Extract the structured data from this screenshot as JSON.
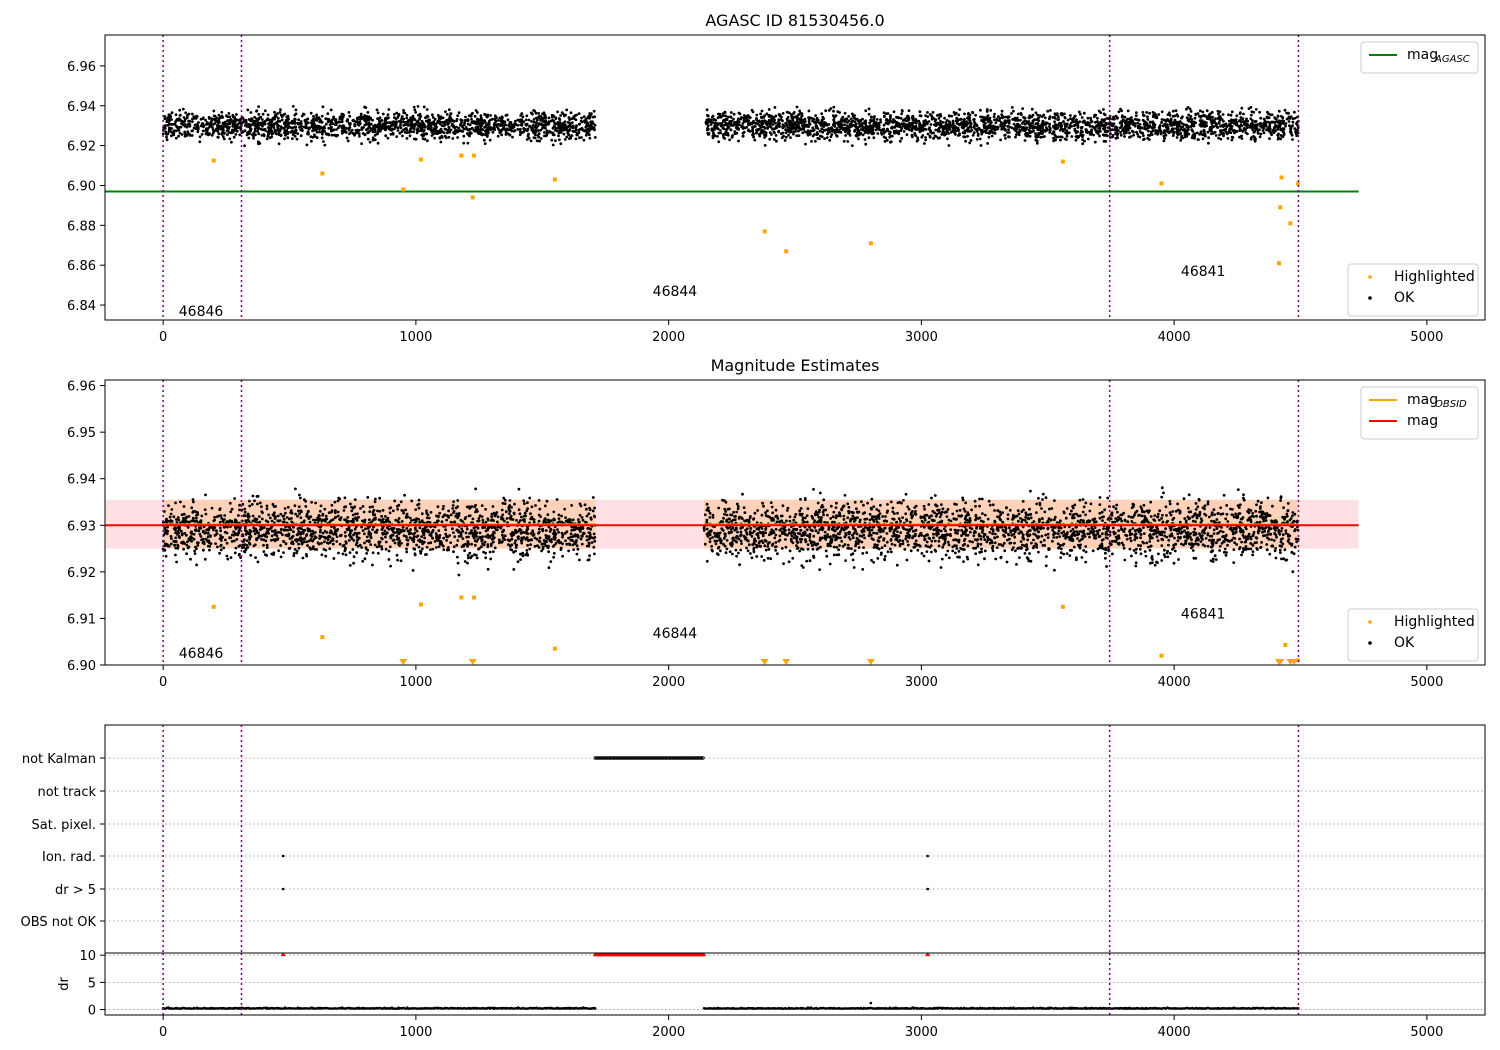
{
  "chart_data": [
    {
      "type": "scatter",
      "title": "AGASC ID 81530456.0",
      "xlim": [
        -230,
        5230
      ],
      "ylim": [
        6.8325,
        6.9755
      ],
      "xticks": [
        0,
        1000,
        2000,
        3000,
        4000,
        5000
      ],
      "yticks": [
        6.84,
        6.86,
        6.88,
        6.9,
        6.92,
        6.94,
        6.96
      ],
      "ytick_labels": [
        "6.84",
        "6.86",
        "6.88",
        "6.90",
        "6.92",
        "6.94",
        "6.96"
      ],
      "obs_lines": [
        0,
        310,
        3745,
        4492
      ],
      "obs_labels": [
        {
          "text": "46846",
          "x": 150,
          "y": 6.8345
        },
        {
          "text": "46844",
          "x": 2025,
          "y": 6.8445
        },
        {
          "text": "46841",
          "x": 4115,
          "y": 6.8545
        }
      ],
      "hline": {
        "name": "mag",
        "sub": "AGASC",
        "y": 6.897,
        "x": [
          -230,
          4730
        ],
        "color": "#008000"
      },
      "legend_top": [
        {
          "name": "mag",
          "sub": "AGASC",
          "color": "#008000",
          "kind": "line"
        }
      ],
      "legend_bottom": [
        {
          "name": "Highlighted",
          "color": "#ffa500",
          "kind": "dot"
        },
        {
          "name": "OK",
          "color": "#000000",
          "kind": "dot"
        }
      ],
      "ok_bands": {
        "base": 6.93,
        "spread": 0.0055,
        "ranges": [
          [
            0,
            1710
          ],
          [
            2140,
            4492
          ]
        ]
      },
      "highlighted": [
        [
          200,
          6.9125
        ],
        [
          630,
          6.906
        ],
        [
          950,
          6.898
        ],
        [
          1020,
          6.913
        ],
        [
          1180,
          6.915
        ],
        [
          1230,
          6.915
        ],
        [
          1225,
          6.894
        ],
        [
          1550,
          6.903
        ],
        [
          2380,
          6.877
        ],
        [
          2465,
          6.867
        ],
        [
          2800,
          6.871
        ],
        [
          3560,
          6.912
        ],
        [
          3950,
          6.901
        ],
        [
          4425,
          6.904
        ],
        [
          4420,
          6.889
        ],
        [
          4460,
          6.881
        ],
        [
          4415,
          6.861
        ],
        [
          4490,
          6.901
        ]
      ]
    },
    {
      "type": "scatter",
      "title": "Magnitude Estimates",
      "xlim": [
        -230,
        5230
      ],
      "ylim": [
        6.9,
        6.9612
      ],
      "xticks": [
        0,
        1000,
        2000,
        3000,
        4000,
        5000
      ],
      "yticks": [
        6.9,
        6.91,
        6.92,
        6.93,
        6.94,
        6.95,
        6.96
      ],
      "ytick_labels": [
        "6.90",
        "6.91",
        "6.92",
        "6.93",
        "6.94",
        "6.95",
        "6.96"
      ],
      "obs_lines": [
        0,
        310,
        3745,
        4492
      ],
      "obs_labels": [
        {
          "text": "46846",
          "x": 150,
          "y": 6.9015
        },
        {
          "text": "46844",
          "x": 2025,
          "y": 6.9058
        },
        {
          "text": "46841",
          "x": 4115,
          "y": 6.91
        }
      ],
      "band_pink": {
        "x": [
          -230,
          4730
        ],
        "y": [
          6.925,
          6.9355
        ],
        "color": "#ff9aa8"
      },
      "band_orange": {
        "ranges": [
          [
            0,
            310
          ],
          [
            310,
            1710
          ],
          [
            2140,
            3745
          ],
          [
            3745,
            4492
          ]
        ],
        "y": [
          6.925,
          6.9355
        ],
        "color": "#ffbf80"
      },
      "mag_line": {
        "name": "mag",
        "y": 6.93,
        "x": [
          -230,
          4730
        ],
        "color": "#ff0000"
      },
      "mag_obsid_line": {
        "name": "mag",
        "sub": "OBSID",
        "y": 6.9302,
        "color": "#ffa500"
      },
      "legend_top": [
        {
          "name": "mag",
          "sub": "OBSID",
          "color": "#ffa500",
          "kind": "line"
        },
        {
          "name": "mag",
          "sub": "",
          "color": "#ff0000",
          "kind": "line"
        }
      ],
      "legend_bottom": [
        {
          "name": "Highlighted",
          "color": "#ffa500",
          "kind": "dot"
        },
        {
          "name": "OK",
          "color": "#000000",
          "kind": "dot"
        }
      ],
      "ok_bands": {
        "base": 6.929,
        "spread": 0.0048,
        "ranges": [
          [
            0,
            1710
          ],
          [
            2140,
            4492
          ]
        ]
      },
      "highlighted": [
        [
          200,
          6.9125
        ],
        [
          630,
          6.906
        ],
        [
          1020,
          6.913
        ],
        [
          1180,
          6.9145
        ],
        [
          1230,
          6.9145
        ],
        [
          1550,
          6.9035
        ],
        [
          3560,
          6.9125
        ],
        [
          3950,
          6.902
        ],
        [
          4440,
          6.9043
        ],
        [
          4490,
          6.901
        ]
      ],
      "clipped_markers": [
        950,
        1225,
        2380,
        2465,
        2800,
        4415,
        4420,
        4460,
        4475
      ]
    },
    {
      "type": "scatter",
      "title": "",
      "xlim": [
        -230,
        5230
      ],
      "flag_rows": [
        "not Kalman",
        "not track",
        "Sat. pixel.",
        "Ion. rad.",
        "dr > 5",
        "OBS not OK"
      ],
      "flag_points": {
        "not Kalman": [
          [
            1710,
            2140
          ]
        ],
        "Ion. rad.": [
          [
            475,
            475
          ],
          [
            3025,
            3025
          ]
        ],
        "dr > 5": [
          [
            475,
            475
          ],
          [
            3025,
            3025
          ]
        ]
      },
      "dr_ylabel": "dr",
      "dr_yticks": [
        0,
        5,
        10
      ],
      "dr_ylim": [
        -1,
        10.4
      ],
      "dr_capped": [
        [
          475,
          475
        ],
        [
          1710,
          2140
        ],
        [
          3025,
          3025
        ]
      ],
      "dr_spike": [
        2800,
        1.2
      ],
      "obs_lines": [
        0,
        310,
        3745,
        4492
      ],
      "xticks": [
        0,
        1000,
        2000,
        3000,
        4000,
        5000
      ]
    }
  ]
}
